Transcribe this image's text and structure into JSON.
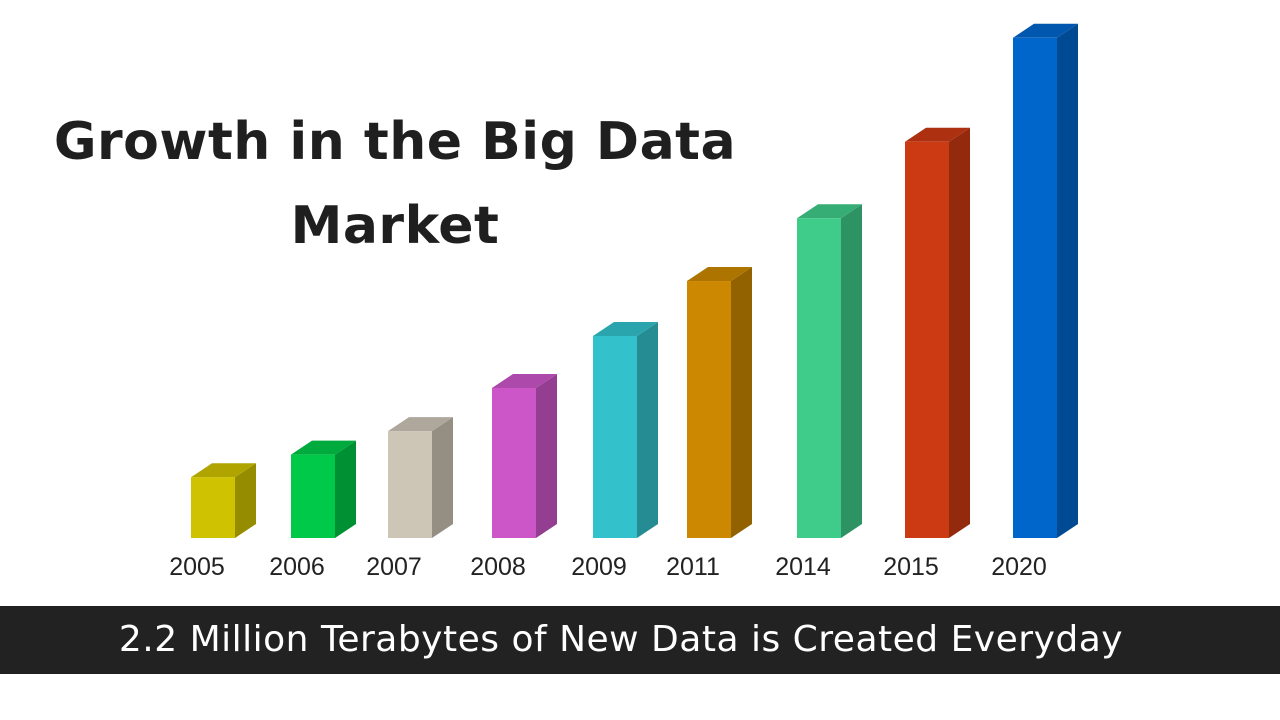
{
  "chart_data": {
    "type": "bar",
    "title_lines": [
      "Growth in the Big Data",
      "Market"
    ],
    "categories": [
      "2005",
      "2006",
      "2007",
      "2008",
      "2009",
      "2011",
      "2014",
      "2015",
      "2020"
    ],
    "values": [
      62,
      85,
      109,
      153,
      206,
      262,
      326,
      404,
      510
    ],
    "ylim": [
      0,
      520
    ],
    "bar_colors": [
      "#cfc200",
      "#00c848",
      "#cdc5b6",
      "#cc56c8",
      "#33c2cc",
      "#cc8800",
      "#3fcc8a",
      "#cc3a14",
      "#0066cc"
    ],
    "grid": false,
    "legend": "none",
    "style": "3d"
  },
  "banner": {
    "text": "2.2 Million Terabytes of New Data is Created Everyday"
  }
}
